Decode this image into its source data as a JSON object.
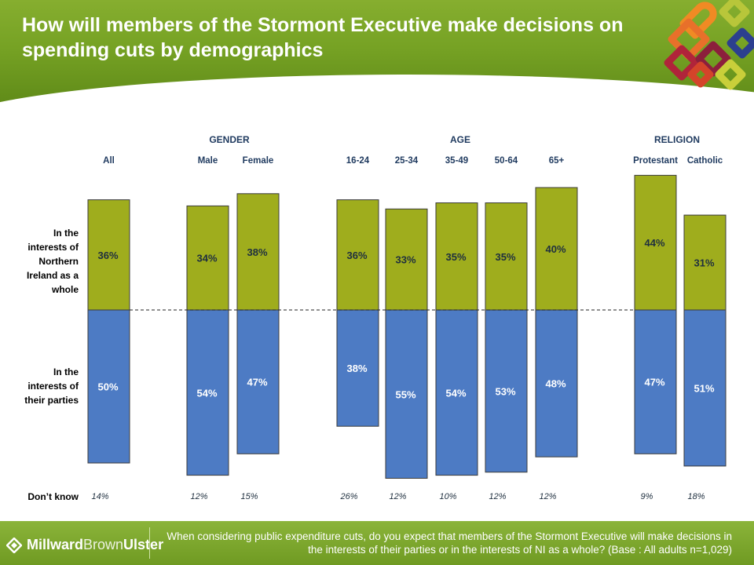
{
  "title": "How will members of the Stormont Executive make decisions on spending cuts by demographics",
  "colors": {
    "nation": "#9fad1d",
    "party": "#4d7bc4",
    "header_green": "#76a224",
    "text_dark": "#1f3a5f"
  },
  "chart_data": {
    "type": "bar",
    "groups": [
      {
        "label": "",
        "categories": [
          "All"
        ]
      },
      {
        "label": "GENDER",
        "categories": [
          "Male",
          "Female"
        ]
      },
      {
        "label": "AGE",
        "categories": [
          "16-24",
          "25-34",
          "35-49",
          "50-64",
          "65+"
        ]
      },
      {
        "label": "RELIGION",
        "categories": [
          "Protestant",
          "Catholic"
        ]
      }
    ],
    "categories": [
      "All",
      "Male",
      "Female",
      "16-24",
      "25-34",
      "35-49",
      "50-64",
      "65+",
      "Protestant",
      "Catholic"
    ],
    "series": [
      {
        "name": "In the interests of Northern Ireland as a whole",
        "color": "#9fad1d",
        "values": [
          36,
          34,
          38,
          36,
          33,
          35,
          35,
          40,
          44,
          31
        ],
        "labels": [
          "36%",
          "34%",
          "38%",
          "36%",
          "33%",
          "35%",
          "35%",
          "40%",
          "44%",
          "31%"
        ]
      },
      {
        "name": "In the interests of their parties",
        "color": "#4d7bc4",
        "values": [
          50,
          54,
          47,
          38,
          55,
          54,
          53,
          48,
          47,
          51
        ],
        "labels": [
          "50%",
          "54%",
          "47%",
          "38%",
          "55%",
          "54%",
          "53%",
          "48%",
          "47%",
          "51%"
        ]
      }
    ],
    "dont_know": {
      "label": "Don’t know",
      "values": [
        14,
        12,
        15,
        26,
        12,
        10,
        12,
        12,
        9,
        18
      ],
      "labels": [
        "14%",
        "12%",
        "15%",
        "26%",
        "12%",
        "10%",
        "12%",
        "12%",
        "9%",
        "18%"
      ]
    },
    "row_labels": {
      "top": [
        "In the",
        "interests of",
        "Northern",
        "Ireland as a",
        "whole"
      ],
      "bottom": [
        "In the",
        "interests of",
        "their parties"
      ]
    },
    "baseline_style": "dashed"
  },
  "footer": {
    "brand_first": "Millward",
    "brand_second": "Brown",
    "brand_third": " Ulster",
    "question": "When considering public expenditure cuts, do you expect that members of the Stormont Executive will make decisions in the interests of their parties or in the interests of NI as a whole? (Base : All adults n=1,029)"
  }
}
